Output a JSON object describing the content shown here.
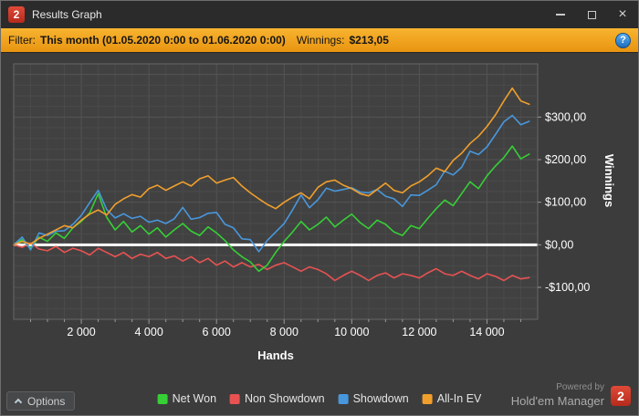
{
  "window": {
    "title": "Results Graph",
    "logo_text": "2",
    "close_glyph": "×"
  },
  "filter_bar": {
    "label": "Filter:",
    "range_text": "This month (01.05.2020 0:00 to 01.06.2020 0:00)",
    "winnings_label": "Winnings:",
    "winnings_value": "$213,05",
    "help_glyph": "?"
  },
  "chart_data": {
    "type": "line",
    "title": "",
    "xlabel": "Hands",
    "ylabel": "Winnings",
    "xlim": [
      0,
      15500
    ],
    "ylim": [
      -175,
      425
    ],
    "x_ticks": [
      2000,
      4000,
      6000,
      8000,
      10000,
      12000,
      14000
    ],
    "x_tick_labels": [
      "2 000",
      "4 000",
      "6 000",
      "8 000",
      "10 000",
      "12 000",
      "14 000"
    ],
    "y_ticks": [
      300,
      200,
      100,
      0,
      -100
    ],
    "y_tick_labels": [
      "$300,00",
      "$200,00",
      "$100,00",
      "$0,00",
      "-$100,00"
    ],
    "grid": {
      "x_minor": 500,
      "x_major": 2000,
      "y_minor": 25,
      "y_major": 100
    },
    "zero_line_value": 0,
    "legend_position": "bottom",
    "x": [
      0,
      250,
      500,
      750,
      1000,
      1250,
      1500,
      1750,
      2000,
      2250,
      2500,
      2750,
      3000,
      3250,
      3500,
      3750,
      4000,
      4250,
      4500,
      4750,
      5000,
      5250,
      5500,
      5750,
      6000,
      6250,
      6500,
      6750,
      7000,
      7250,
      7500,
      7750,
      8000,
      8250,
      8500,
      8750,
      9000,
      9250,
      9500,
      9750,
      10000,
      10250,
      10500,
      10750,
      11000,
      11250,
      11500,
      11750,
      12000,
      12250,
      12500,
      12750,
      13000,
      13250,
      13500,
      13750,
      14000,
      14250,
      14500,
      14750,
      15000,
      15250
    ],
    "series": [
      {
        "name": "Net Won",
        "color": "#36cf36",
        "values": [
          0,
          12,
          -8,
          18,
          8,
          28,
          15,
          40,
          55,
          75,
          120,
          65,
          35,
          55,
          30,
          45,
          25,
          40,
          18,
          35,
          50,
          32,
          22,
          42,
          28,
          10,
          -12,
          -28,
          -40,
          -62,
          -48,
          -18,
          8,
          30,
          55,
          35,
          48,
          65,
          42,
          58,
          72,
          52,
          38,
          58,
          48,
          30,
          22,
          45,
          38,
          62,
          85,
          105,
          92,
          120,
          148,
          132,
          162,
          185,
          205,
          232,
          202,
          213
        ]
      },
      {
        "name": "Non Showdown",
        "color": "#e85252",
        "values": [
          0,
          -6,
          4,
          -10,
          -14,
          -4,
          -18,
          -8,
          -14,
          -24,
          -8,
          -18,
          -28,
          -18,
          -32,
          -22,
          -28,
          -18,
          -32,
          -26,
          -38,
          -28,
          -42,
          -32,
          -48,
          -38,
          -52,
          -42,
          -52,
          -46,
          -58,
          -48,
          -42,
          -52,
          -62,
          -52,
          -58,
          -68,
          -84,
          -72,
          -62,
          -72,
          -84,
          -72,
          -66,
          -78,
          -68,
          -72,
          -78,
          -66,
          -56,
          -68,
          -72,
          -62,
          -72,
          -80,
          -68,
          -74,
          -84,
          -72,
          -80,
          -77
        ]
      },
      {
        "name": "Showdown",
        "color": "#4897dc",
        "values": [
          0,
          18,
          -12,
          28,
          22,
          32,
          33,
          48,
          69,
          99,
          128,
          83,
          63,
          73,
          62,
          67,
          53,
          58,
          50,
          61,
          88,
          60,
          64,
          74,
          76,
          48,
          40,
          14,
          12,
          -16,
          10,
          30,
          50,
          82,
          117,
          87,
          106,
          133,
          126,
          130,
          134,
          124,
          122,
          130,
          114,
          108,
          90,
          117,
          116,
          128,
          141,
          173,
          164,
          182,
          220,
          212,
          230,
          259,
          289,
          304,
          282,
          290
        ]
      },
      {
        "name": "All-In EV",
        "color": "#f09f2c",
        "values": [
          0,
          8,
          2,
          15,
          25,
          35,
          45,
          40,
          58,
          72,
          82,
          70,
          95,
          108,
          118,
          112,
          132,
          140,
          128,
          138,
          148,
          138,
          155,
          162,
          145,
          152,
          158,
          138,
          122,
          108,
          95,
          85,
          100,
          112,
          122,
          108,
          135,
          148,
          152,
          140,
          132,
          120,
          115,
          130,
          145,
          128,
          122,
          138,
          148,
          162,
          180,
          172,
          198,
          215,
          238,
          255,
          278,
          305,
          338,
          368,
          338,
          330
        ]
      }
    ]
  },
  "footer": {
    "options_label": "Options",
    "powered_by_label": "Powered by",
    "brand_name": "Hold'em Manager",
    "brand_logo_text": "2"
  }
}
